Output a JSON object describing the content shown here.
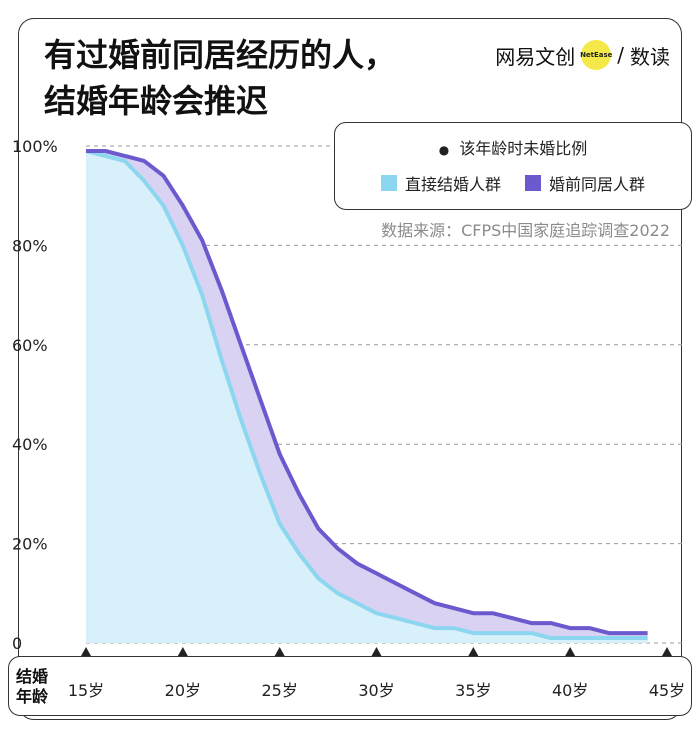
{
  "title": [
    "有过婚前同居经历的人，",
    "结婚年龄会推迟"
  ],
  "brand": {
    "name": "网易文创",
    "badge": "NetEase",
    "sep": "/",
    "sub": "数读"
  },
  "colors": {
    "direct": "#8dd6f0",
    "cohabit": "#6a5acd",
    "direct_fill": "#d8f0fa",
    "between_fill": "#d9d2f3"
  },
  "chart_data": {
    "type": "area",
    "legend_note": "该年龄时未婚比例",
    "source": "数据来源：CFPS中国家庭追踪调查2022",
    "xlabel": [
      "结婚",
      "年龄"
    ],
    "xlim": [
      15,
      45
    ],
    "ylim": [
      0,
      100
    ],
    "x_ticks": [
      15,
      20,
      25,
      30,
      35,
      40,
      45
    ],
    "x_tick_labels": [
      "15岁",
      "20岁",
      "25岁",
      "30岁",
      "35岁",
      "40岁",
      "45岁"
    ],
    "y_ticks": [
      0,
      20,
      40,
      60,
      80,
      100
    ],
    "y_tick_labels": [
      "0",
      "20%",
      "40%",
      "60%",
      "80%",
      "100%"
    ],
    "x": [
      15,
      16,
      17,
      18,
      19,
      20,
      21,
      22,
      23,
      24,
      25,
      26,
      27,
      28,
      29,
      30,
      31,
      32,
      33,
      34,
      35,
      36,
      37,
      38,
      39,
      40,
      41,
      42,
      43,
      44
    ],
    "series": [
      {
        "name": "直接结婚人群",
        "values": [
          99,
          98,
          97,
          93,
          88,
          80,
          70,
          57,
          45,
          34,
          24,
          18,
          13,
          10,
          8,
          6,
          5,
          4,
          3,
          3,
          2,
          2,
          2,
          2,
          1,
          1,
          1,
          1,
          1,
          1
        ]
      },
      {
        "name": "婚前同居人群",
        "values": [
          99,
          99,
          98,
          97,
          94,
          88,
          81,
          71,
          60,
          49,
          38,
          30,
          23,
          19,
          16,
          14,
          12,
          10,
          8,
          7,
          6,
          6,
          5,
          4,
          4,
          3,
          3,
          2,
          2,
          2
        ]
      }
    ]
  }
}
